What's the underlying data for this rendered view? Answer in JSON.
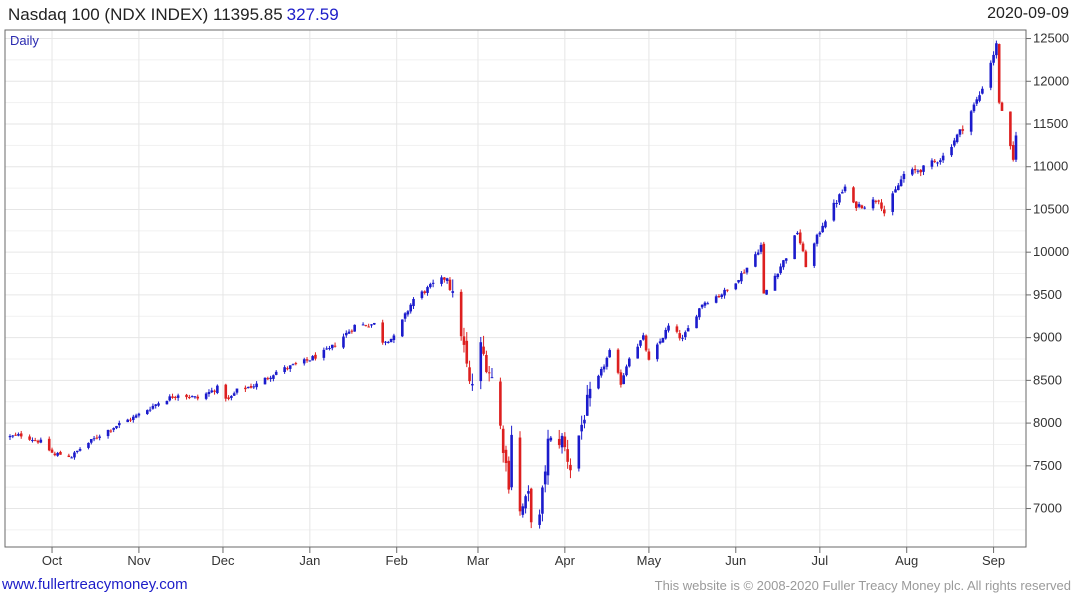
{
  "header": {
    "title": "Nasdaq 100 (NDX INDEX) 11395.85",
    "change": "327.59",
    "date": "2020-09-09"
  },
  "footer": {
    "source": "www.fullertreacymoney.com",
    "copyright": "This website is © 2008-2020 Fuller Treacy Money plc. All rights reserved"
  },
  "colors": {
    "up": "#1b1bcc",
    "down": "#dd1f1f",
    "grid": "#e6e6e6",
    "frame": "#6a6a6a",
    "accent": "#1c1cc8"
  },
  "chart_data": {
    "type": "candlestick",
    "period_label": "Daily",
    "start_date": "2019-09-16",
    "end_date": "2020-09-09",
    "ylim": [
      6550,
      12600
    ],
    "y_ticks": [
      7000,
      7500,
      8000,
      8500,
      9000,
      9500,
      10000,
      10500,
      11000,
      11500,
      12000,
      12500
    ],
    "x_ticks": [
      {
        "label": "Oct",
        "date": "2019-10-01"
      },
      {
        "label": "Nov",
        "date": "2019-11-01"
      },
      {
        "label": "Dec",
        "date": "2019-12-01"
      },
      {
        "label": "Jan",
        "date": "2020-01-01"
      },
      {
        "label": "Feb",
        "date": "2020-02-01"
      },
      {
        "label": "Mar",
        "date": "2020-03-01"
      },
      {
        "label": "Apr",
        "date": "2020-04-01"
      },
      {
        "label": "May",
        "date": "2020-05-01"
      },
      {
        "label": "Jun",
        "date": "2020-06-01"
      },
      {
        "label": "Jul",
        "date": "2020-07-01"
      },
      {
        "label": "Aug",
        "date": "2020-08-01"
      },
      {
        "label": "Sep",
        "date": "2020-09-01"
      }
    ],
    "grid": true,
    "close_path": [
      [
        "2019-09-16",
        7840
      ],
      [
        "2019-09-20",
        7860
      ],
      [
        "2019-09-27",
        7780
      ],
      [
        "2019-10-02",
        7620
      ],
      [
        "2019-10-03",
        7640
      ],
      [
        "2019-10-08",
        7610
      ],
      [
        "2019-10-11",
        7700
      ],
      [
        "2019-10-18",
        7860
      ],
      [
        "2019-10-25",
        7990
      ],
      [
        "2019-10-31",
        8080
      ],
      [
        "2019-11-08",
        8240
      ],
      [
        "2019-11-15",
        8340
      ],
      [
        "2019-11-22",
        8290
      ],
      [
        "2019-11-29",
        8410
      ],
      [
        "2019-12-03",
        8270
      ],
      [
        "2019-12-06",
        8380
      ],
      [
        "2019-12-13",
        8450
      ],
      [
        "2019-12-20",
        8600
      ],
      [
        "2019-12-31",
        8730
      ],
      [
        "2020-01-08",
        8860
      ],
      [
        "2020-01-17",
        9140
      ],
      [
        "2020-01-24",
        9160
      ],
      [
        "2020-01-27",
        8960
      ],
      [
        "2020-01-31",
        9000
      ],
      [
        "2020-02-07",
        9450
      ],
      [
        "2020-02-14",
        9620
      ],
      [
        "2020-02-19",
        9710
      ],
      [
        "2020-02-21",
        9450
      ],
      [
        "2020-02-24",
        9080
      ],
      [
        "2020-02-27",
        8440
      ],
      [
        "2020-02-28",
        8470
      ],
      [
        "2020-03-02",
        8880
      ],
      [
        "2020-03-06",
        8530
      ],
      [
        "2020-03-09",
        7950
      ],
      [
        "2020-03-12",
        7300
      ],
      [
        "2020-03-13",
        7900
      ],
      [
        "2020-03-16",
        6950
      ],
      [
        "2020-03-19",
        7150
      ],
      [
        "2020-03-20",
        6900
      ],
      [
        "2020-03-23",
        6880
      ],
      [
        "2020-03-26",
        7770
      ],
      [
        "2020-03-31",
        7810
      ],
      [
        "2020-04-03",
        7480
      ],
      [
        "2020-04-09",
        8230
      ],
      [
        "2020-04-17",
        8830
      ],
      [
        "2020-04-21",
        8470
      ],
      [
        "2020-04-24",
        8780
      ],
      [
        "2020-04-29",
        9000
      ],
      [
        "2020-05-01",
        8720
      ],
      [
        "2020-05-08",
        9130
      ],
      [
        "2020-05-13",
        8980
      ],
      [
        "2020-05-20",
        9400
      ],
      [
        "2020-05-29",
        9550
      ],
      [
        "2020-06-05",
        9820
      ],
      [
        "2020-06-10",
        10080
      ],
      [
        "2020-06-11",
        9500
      ],
      [
        "2020-06-19",
        9950
      ],
      [
        "2020-06-23",
        10240
      ],
      [
        "2020-06-26",
        9850
      ],
      [
        "2020-07-02",
        10330
      ],
      [
        "2020-07-10",
        10760
      ],
      [
        "2020-07-13",
        10550
      ],
      [
        "2020-07-17",
        10550
      ],
      [
        "2020-07-22",
        10630
      ],
      [
        "2020-07-24",
        10460
      ],
      [
        "2020-07-31",
        10910
      ],
      [
        "2020-08-07",
        10980
      ],
      [
        "2020-08-14",
        11120
      ],
      [
        "2020-08-21",
        11460
      ],
      [
        "2020-08-27",
        11840
      ],
      [
        "2020-09-02",
        12420
      ],
      [
        "2020-09-03",
        11770
      ],
      [
        "2020-09-04",
        11620
      ],
      [
        "2020-09-08",
        11070
      ],
      [
        "2020-09-09",
        11396
      ]
    ]
  }
}
